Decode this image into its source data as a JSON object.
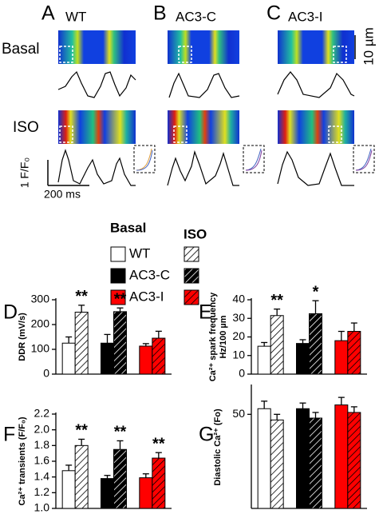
{
  "panels": [
    {
      "letter": "A",
      "label": "WT"
    },
    {
      "letter": "B",
      "label": "AC3-C"
    },
    {
      "letter": "C",
      "label": "AC3-I"
    }
  ],
  "rows": [
    "Basal",
    "ISO"
  ],
  "scale_bars": {
    "space": "10 µm",
    "amplitude": "1 F/F₀",
    "time": "200 ms"
  },
  "legend": {
    "basal": "Basal",
    "iso": "ISO",
    "groups": [
      {
        "name": "WT",
        "color": "#ffffff"
      },
      {
        "name": "AC3-C",
        "color": "#000000"
      },
      {
        "name": "AC3-I",
        "color": "#ff0000"
      }
    ]
  },
  "chart_data": [
    {
      "type": "bar",
      "letter": "D",
      "ylabel": "DDR (mV/s)",
      "ylim": [
        0,
        300
      ],
      "yticks": [
        0,
        100,
        200,
        300
      ],
      "series": [
        {
          "values": [
            125,
            125,
            113
          ],
          "errors": [
            25,
            35,
            10
          ]
        },
        {
          "values": [
            250,
            252,
            145
          ],
          "errors": [
            28,
            15,
            28
          ],
          "hatch": true,
          "labels": [
            "**",
            "**",
            null
          ]
        }
      ]
    },
    {
      "type": "bar",
      "letter": "E",
      "ylabel": [
        "Ca²⁺ spark frequency",
        "Hz/100 µm"
      ],
      "ylim": [
        0,
        40
      ],
      "yticks": [
        0,
        10,
        20,
        30,
        40
      ],
      "series": [
        {
          "values": [
            15,
            16.5,
            18
          ],
          "errors": [
            2,
            2,
            5
          ]
        },
        {
          "values": [
            31.5,
            32.5,
            23
          ],
          "errors": [
            3.5,
            7,
            4.5
          ],
          "hatch": true,
          "labels": [
            "**",
            "*",
            null
          ]
        }
      ]
    },
    {
      "type": "bar",
      "letter": "F",
      "ylabel": "Ca²⁺ transients (F/F₀)",
      "ylim": [
        1.0,
        2.2
      ],
      "yticks": [
        {
          "value": 1.0,
          "label": "1.0"
        },
        1.2,
        1.4,
        1.6,
        1.8,
        {
          "value": 2.0,
          "label": "2.0"
        },
        2.2
      ],
      "series": [
        {
          "values": [
            1.48,
            1.38,
            1.39
          ],
          "errors": [
            0.07,
            0.04,
            0.05
          ]
        },
        {
          "values": [
            1.8,
            1.75,
            1.64
          ],
          "errors": [
            0.08,
            0.11,
            0.07
          ],
          "hatch": true,
          "labels": [
            "**",
            "**",
            "**"
          ]
        }
      ]
    },
    {
      "type": "bar",
      "letter": "G",
      "ylabel": "Diastolic Ca²⁺ (Fo)",
      "ylim": [
        0,
        65
      ],
      "yticks": [
        50
      ],
      "series": [
        {
          "values": [
            53,
            53,
            55
          ],
          "errors": [
            4,
            3,
            4
          ]
        },
        {
          "values": [
            47,
            48,
            51
          ],
          "errors": [
            3,
            3,
            3
          ],
          "hatch": true
        }
      ]
    }
  ]
}
